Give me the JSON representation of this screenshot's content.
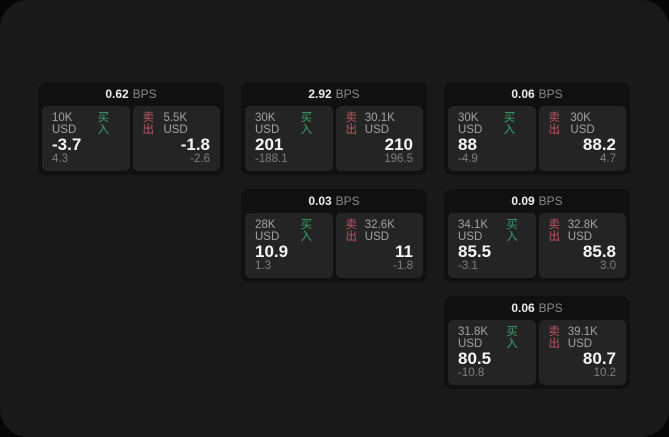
{
  "labels": {
    "bps_unit": "BPS",
    "buy": "买入",
    "sell": "卖出"
  },
  "colors": {
    "buy_green": "#3da06c",
    "sell_red": "#bf5564",
    "surface": "#191919",
    "card": "#101010",
    "panel": "#242424"
  },
  "cards": [
    {
      "bps": "0.62",
      "buy": {
        "amount": "10K USD",
        "price": "-3.7",
        "delta": "4.3"
      },
      "sell": {
        "amount": "5.5K USD",
        "price": "-1.8",
        "delta": "-2.6"
      }
    },
    {
      "bps": "2.92",
      "buy": {
        "amount": "30K USD",
        "price": "201",
        "delta": "-188.1"
      },
      "sell": {
        "amount": "30.1K USD",
        "price": "210",
        "delta": "196.5"
      }
    },
    {
      "bps": "0.06",
      "buy": {
        "amount": "30K USD",
        "price": "88",
        "delta": "-4.9"
      },
      "sell": {
        "amount": "30K USD",
        "price": "88.2",
        "delta": "4.7"
      }
    },
    {
      "bps": "0.03",
      "buy": {
        "amount": "28K USD",
        "price": "10.9",
        "delta": "1.3"
      },
      "sell": {
        "amount": "32.6K USD",
        "price": "11",
        "delta": "-1.8"
      }
    },
    {
      "bps": "0.09",
      "buy": {
        "amount": "34.1K USD",
        "price": "85.5",
        "delta": "-3.1"
      },
      "sell": {
        "amount": "32.8K USD",
        "price": "85.8",
        "delta": "3.0"
      }
    },
    {
      "bps": "0.06",
      "buy": {
        "amount": "31.8K USD",
        "price": "80.5",
        "delta": "-10.8"
      },
      "sell": {
        "amount": "39.1K USD",
        "price": "80.7",
        "delta": "10.2"
      }
    }
  ]
}
